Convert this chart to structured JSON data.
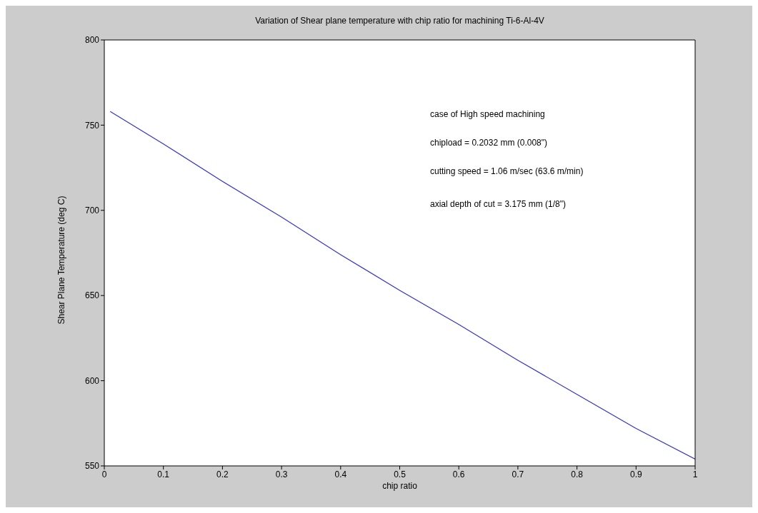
{
  "chart_data": {
    "type": "line",
    "title": "Variation of Shear plane temperature with chip ratio for machining Ti-6-Al-4V",
    "xlabel": "chip ratio",
    "ylabel": "Shear Plane Temperature (deg C)",
    "x": [
      0.01,
      0.1,
      0.2,
      0.3,
      0.4,
      0.5,
      0.6,
      0.7,
      0.8,
      0.9,
      1
    ],
    "series": [
      {
        "color": "#3333cc",
        "values": [
          758,
          739,
          717,
          696,
          674,
          653,
          633,
          612,
          592,
          572,
          554
        ]
      }
    ],
    "xlim": [
      0,
      1
    ],
    "xticks": [
      0,
      0.1,
      0.2,
      0.3,
      0.4,
      0.5,
      0.6,
      0.7,
      0.8,
      0.9,
      1
    ],
    "ylim": [
      550,
      800
    ],
    "yticks": [
      550,
      600,
      650,
      700,
      750,
      800
    ],
    "legend": false,
    "marker": "none",
    "line_style": "solid",
    "annotations": [
      "case of High speed machining",
      "chipload = 0.2032 mm (0.008\")",
      "cutting speed = 1.06 m/sec (63.6 m/min)",
      "axial depth of cut = 3.175 mm (1/8\")"
    ]
  }
}
